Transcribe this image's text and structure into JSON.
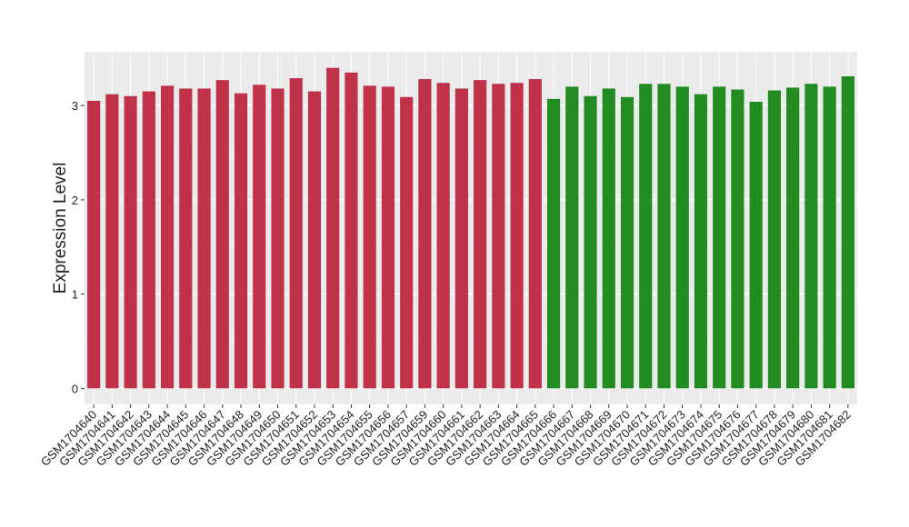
{
  "chart_data": {
    "type": "bar",
    "y_label": "Expression Level",
    "categories": [
      "GSM1704640",
      "GSM1704641",
      "GSM1704642",
      "GSM1704643",
      "GSM1704644",
      "GSM1704645",
      "GSM1704646",
      "GSM1704647",
      "GSM1704648",
      "GSM1704649",
      "GSM1704650",
      "GSM1704651",
      "GSM1704652",
      "GSM1704653",
      "GSM1704654",
      "GSM1704655",
      "GSM1704656",
      "GSM1704657",
      "GSM1704659",
      "GSM1704660",
      "GSM1704661",
      "GSM1704662",
      "GSM1704663",
      "GSM1704664",
      "GSM1704665",
      "GSM1704666",
      "GSM1704667",
      "GSM1704668",
      "GSM1704669",
      "GSM1704670",
      "GSM1704671",
      "GSM1704672",
      "GSM1704673",
      "GSM1704674",
      "GSM1704675",
      "GSM1704676",
      "GSM1704677",
      "GSM1704678",
      "GSM1704679",
      "GSM1704680",
      "GSM1704681",
      "GSM1704682"
    ],
    "values": [
      3.05,
      3.12,
      3.1,
      3.15,
      3.21,
      3.18,
      3.18,
      3.27,
      3.13,
      3.22,
      3.18,
      3.29,
      3.15,
      3.4,
      3.35,
      3.21,
      3.2,
      3.09,
      3.28,
      3.24,
      3.18,
      3.27,
      3.23,
      3.24,
      3.28,
      3.07,
      3.2,
      3.1,
      3.18,
      3.09,
      3.23,
      3.23,
      3.2,
      3.12,
      3.2,
      3.17,
      3.04,
      3.16,
      3.19,
      3.23,
      3.2,
      3.31
    ],
    "colors": [
      "#c0314a",
      "#c0314a",
      "#c0314a",
      "#c0314a",
      "#c0314a",
      "#c0314a",
      "#c0314a",
      "#c0314a",
      "#c0314a",
      "#c0314a",
      "#c0314a",
      "#c0314a",
      "#c0314a",
      "#c0314a",
      "#c0314a",
      "#c0314a",
      "#c0314a",
      "#c0314a",
      "#c0314a",
      "#c0314a",
      "#c0314a",
      "#c0314a",
      "#c0314a",
      "#c0314a",
      "#c0314a",
      "#228b22",
      "#228b22",
      "#228b22",
      "#228b22",
      "#228b22",
      "#228b22",
      "#228b22",
      "#228b22",
      "#228b22",
      "#228b22",
      "#228b22",
      "#228b22",
      "#228b22",
      "#228b22",
      "#228b22",
      "#228b22",
      "#228b22"
    ],
    "ylim": [
      -0.17,
      3.57
    ],
    "yticks": [
      0,
      1,
      2,
      3
    ],
    "grid": true
  }
}
